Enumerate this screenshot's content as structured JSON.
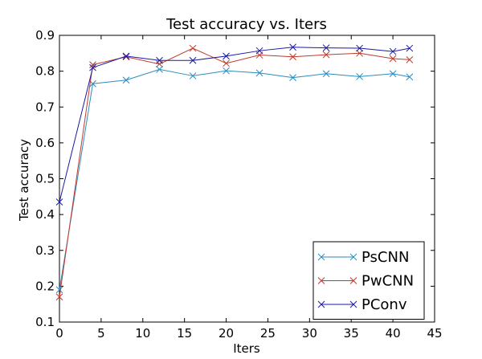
{
  "chart_data": {
    "type": "line",
    "title": "Test accuracy  vs. Iters",
    "xlabel": "Iters",
    "ylabel": "Test accuracy",
    "xlim": [
      0,
      45
    ],
    "ylim": [
      0.1,
      0.9
    ],
    "xticks": [
      0,
      5,
      10,
      15,
      20,
      25,
      30,
      35,
      40,
      45
    ],
    "yticks": [
      0.1,
      0.2,
      0.3,
      0.4,
      0.5,
      0.6,
      0.7,
      0.8,
      0.9
    ],
    "grid": false,
    "legend_position": "lower-right",
    "marker": "x",
    "series": [
      {
        "name": "PsCNN",
        "color": "#2b8cbe",
        "x": [
          0,
          4,
          8,
          12,
          16,
          20,
          24,
          28,
          32,
          36,
          40,
          42
        ],
        "y": [
          0.19,
          0.765,
          0.775,
          0.805,
          0.787,
          0.801,
          0.795,
          0.782,
          0.793,
          0.785,
          0.793,
          0.784
        ]
      },
      {
        "name": "PwCNN",
        "color": "#c0392b",
        "x": [
          0,
          4,
          8,
          12,
          16,
          20,
          24,
          28,
          32,
          36,
          40,
          42
        ],
        "y": [
          0.17,
          0.818,
          0.84,
          0.82,
          0.864,
          0.822,
          0.845,
          0.84,
          0.846,
          0.85,
          0.835,
          0.832
        ]
      },
      {
        "name": "PConv",
        "color": "#1a1aa6",
        "x": [
          0,
          4,
          8,
          12,
          16,
          20,
          24,
          28,
          32,
          36,
          40,
          42
        ],
        "y": [
          0.435,
          0.81,
          0.842,
          0.83,
          0.83,
          0.842,
          0.857,
          0.867,
          0.865,
          0.864,
          0.855,
          0.864
        ]
      }
    ]
  }
}
